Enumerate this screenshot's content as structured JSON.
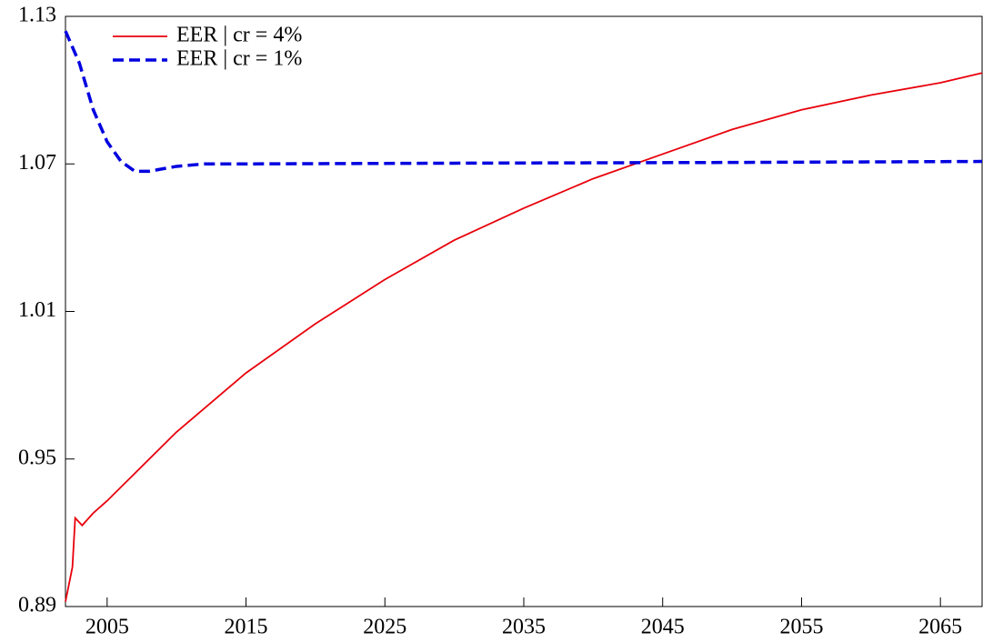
{
  "chart_data": {
    "type": "line",
    "series": [
      {
        "name": "EER | cr = 4%",
        "color": "#e8000b",
        "dash": "none",
        "x": [
          2002,
          2002.5,
          2002.7,
          2003.2,
          2004,
          2005,
          2010,
          2015,
          2020,
          2025,
          2030,
          2035,
          2040,
          2045,
          2050,
          2055,
          2060,
          2065,
          2068
        ],
        "values": [
          0.892,
          0.906,
          0.926,
          0.923,
          0.928,
          0.933,
          0.961,
          0.985,
          1.005,
          1.023,
          1.039,
          1.052,
          1.064,
          1.074,
          1.084,
          1.092,
          1.098,
          1.103,
          1.107
        ]
      },
      {
        "name": "EER | cr = 1%",
        "color": "#0000e0",
        "dash": "12,6",
        "x": [
          2002,
          2003,
          2004,
          2005,
          2006,
          2007,
          2008,
          2009,
          2010,
          2012,
          2015,
          2030,
          2050,
          2068
        ],
        "values": [
          1.124,
          1.111,
          1.092,
          1.079,
          1.071,
          1.067,
          1.067,
          1.068,
          1.069,
          1.07,
          1.07,
          1.0703,
          1.0706,
          1.071
        ]
      }
    ],
    "xlim": [
      2002,
      2068
    ],
    "xticks": [
      2005,
      2015,
      2025,
      2035,
      2045,
      2055,
      2065
    ],
    "ylim": [
      0.89,
      1.13
    ],
    "yticks": [
      0.89,
      0.95,
      1.01,
      1.07,
      1.13
    ],
    "legend": "upper left"
  }
}
